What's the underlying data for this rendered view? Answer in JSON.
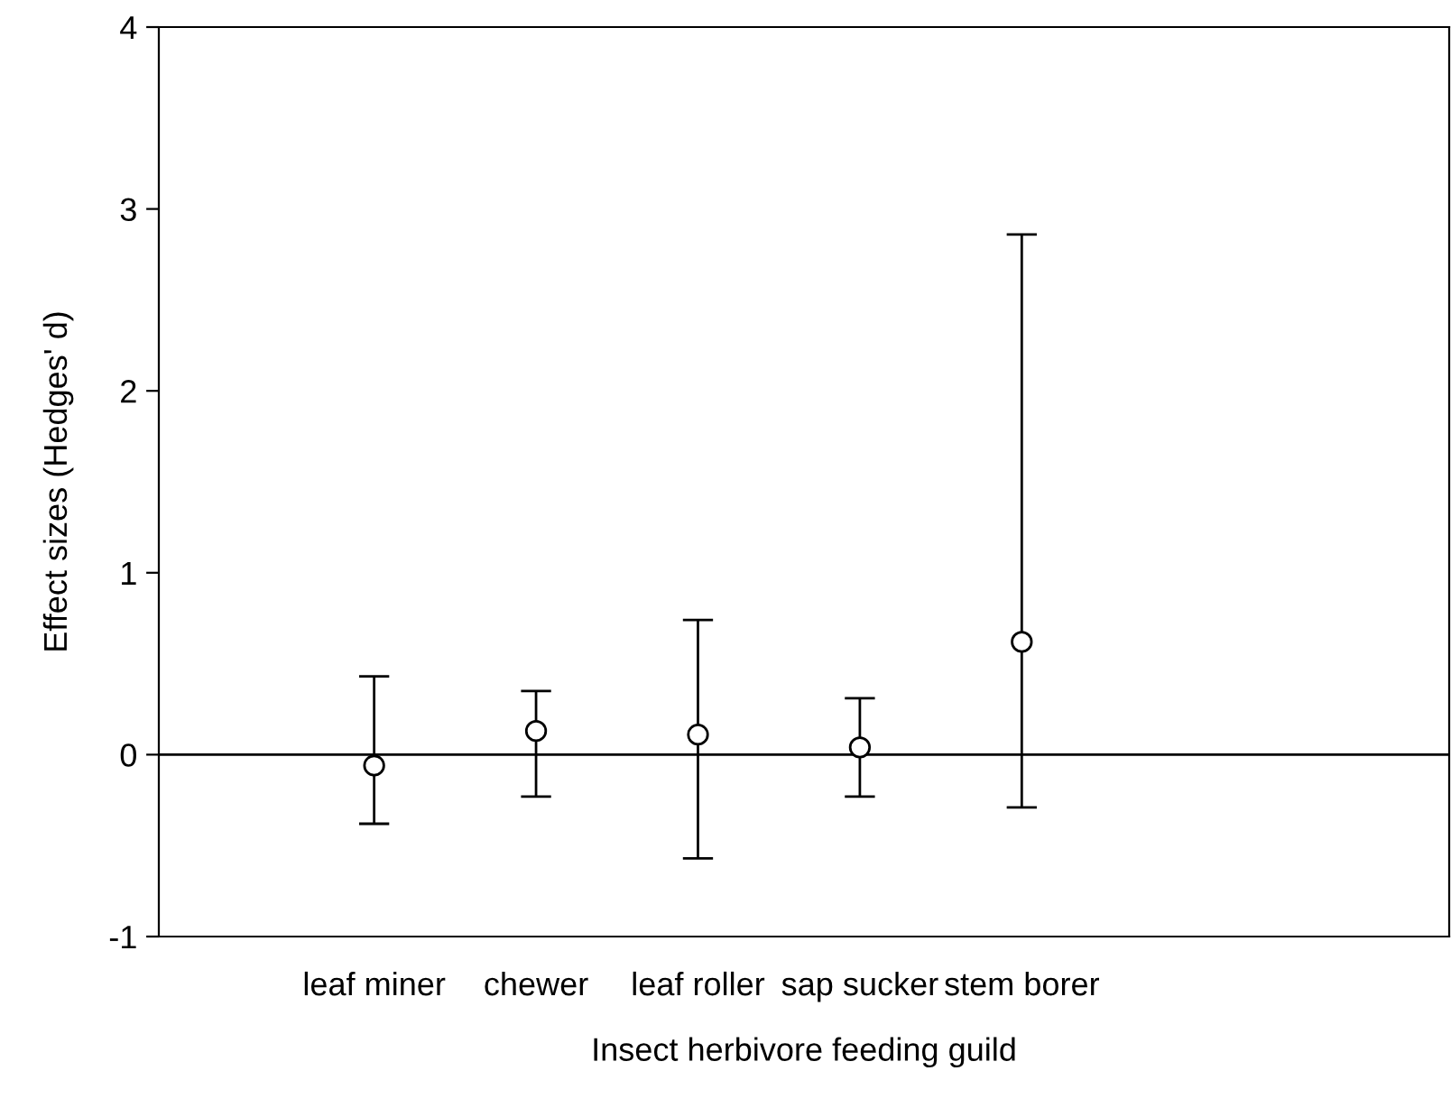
{
  "chart_data": {
    "type": "scatter",
    "xlabel": "Insect herbivore feeding guild",
    "ylabel": "Effect sizes (Hedges' d)",
    "categories": [
      "leaf miner",
      "chewer",
      "leaf roller",
      "sap sucker",
      "stem borer"
    ],
    "values": [
      -0.06,
      0.13,
      0.11,
      0.04,
      0.62
    ],
    "errors": [
      [
        -0.38,
        0.43
      ],
      [
        -0.23,
        0.35
      ],
      [
        -0.57,
        0.74
      ],
      [
        -0.23,
        0.31
      ],
      [
        -0.29,
        2.86
      ]
    ],
    "color": "#000000",
    "marker": "circle",
    "ylim": [
      -1,
      4
    ],
    "yticks": [
      -1,
      0,
      1,
      2,
      3,
      4
    ],
    "ref_lines": [
      {
        "axis": "y",
        "value": 0,
        "color": "#000000"
      }
    ],
    "grid": false,
    "legend": false
  }
}
